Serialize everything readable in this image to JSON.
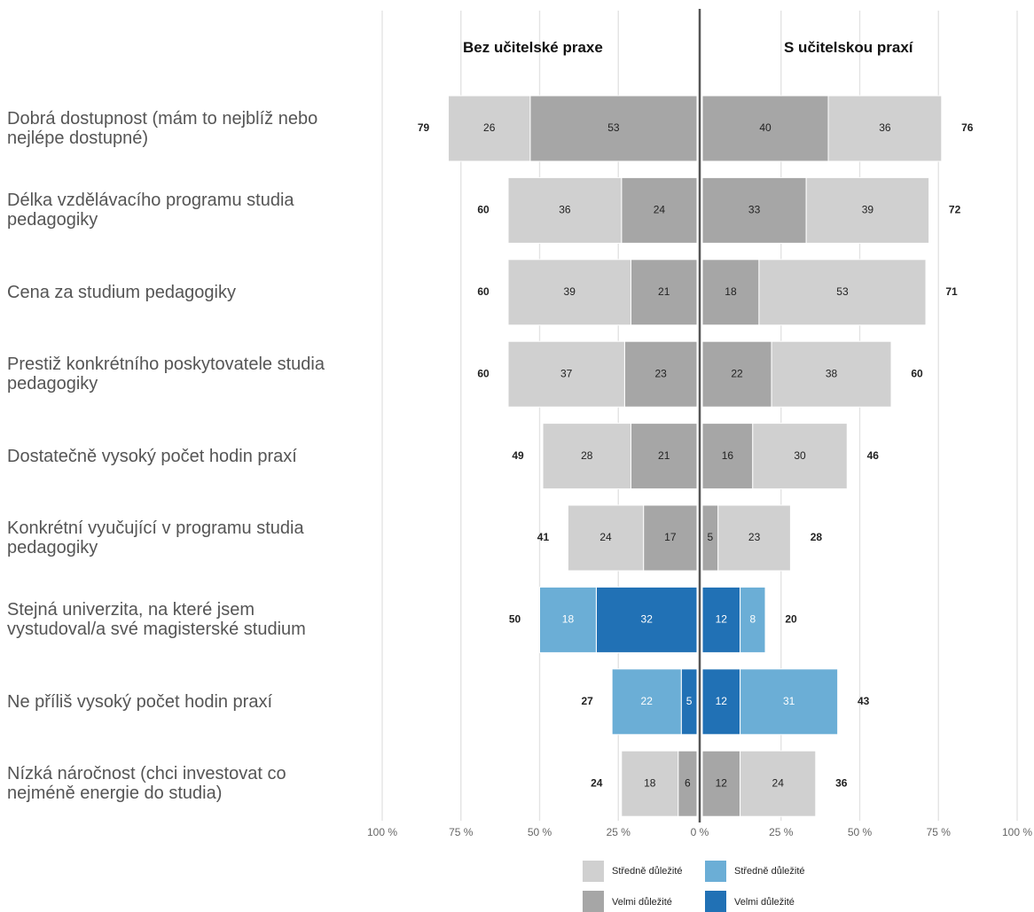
{
  "chart_data": {
    "type": "bar",
    "orientation": "horizontal-diverging",
    "panels": [
      "Bez učitelské praxe",
      "S učitelskou praxí"
    ],
    "categories": [
      "Dobrá dostupnost (mám to nejblíž nebo nejlépe dostupné)",
      "Délka vzdělávacího programu studia pedagogiky",
      "Cena za studium pedagogiky",
      "Prestiž konkrétního poskytovatele studia pedagogiky",
      "Dostatečně vysoký počet hodin praxí",
      "Konkrétní vyučující v programu studia pedagogiky",
      "Stejná univerzita, na které jsem vystudoval/a své magisterské studium",
      "Ne příliš vysoký počet hodin praxí",
      "Nízká náročnost (chci investovat co nejméně energie do studia)"
    ],
    "color_scheme": [
      "gray",
      "gray",
      "gray",
      "gray",
      "gray",
      "gray",
      "blue",
      "blue",
      "gray"
    ],
    "left": {
      "stredne": [
        26,
        36,
        39,
        37,
        28,
        24,
        18,
        22,
        18
      ],
      "velmi": [
        53,
        24,
        21,
        23,
        21,
        17,
        32,
        5,
        6
      ],
      "totals": [
        79,
        60,
        60,
        60,
        49,
        41,
        50,
        27,
        24
      ]
    },
    "right": {
      "velmi": [
        40,
        33,
        18,
        22,
        16,
        5,
        12,
        12,
        12
      ],
      "stredne": [
        36,
        39,
        53,
        38,
        30,
        23,
        8,
        31,
        24
      ],
      "totals": [
        76,
        72,
        71,
        60,
        46,
        28,
        20,
        43,
        36
      ]
    },
    "x_ticks_left": [
      "100 %",
      "75 %",
      "50 %",
      "25 %",
      "0 %"
    ],
    "x_ticks_right": [
      "25 %",
      "50 %",
      "75 %",
      "100 %"
    ],
    "xlim": [
      0,
      100
    ],
    "grid": true,
    "legend": {
      "placement": "bottom",
      "items": [
        {
          "label": "Středně důležité",
          "color": "#d0d0d0"
        },
        {
          "label": "Středně důležité",
          "color": "#6baed6"
        },
        {
          "label": "Velmi důležité",
          "color": "#a6a6a6"
        },
        {
          "label": "Velmi důležité",
          "color": "#2171b5"
        }
      ]
    },
    "colors": {
      "gray_stredne": "#d0d0d0",
      "gray_velmi": "#a6a6a6",
      "blue_stredne": "#6baed6",
      "blue_velmi": "#2171b5"
    }
  }
}
